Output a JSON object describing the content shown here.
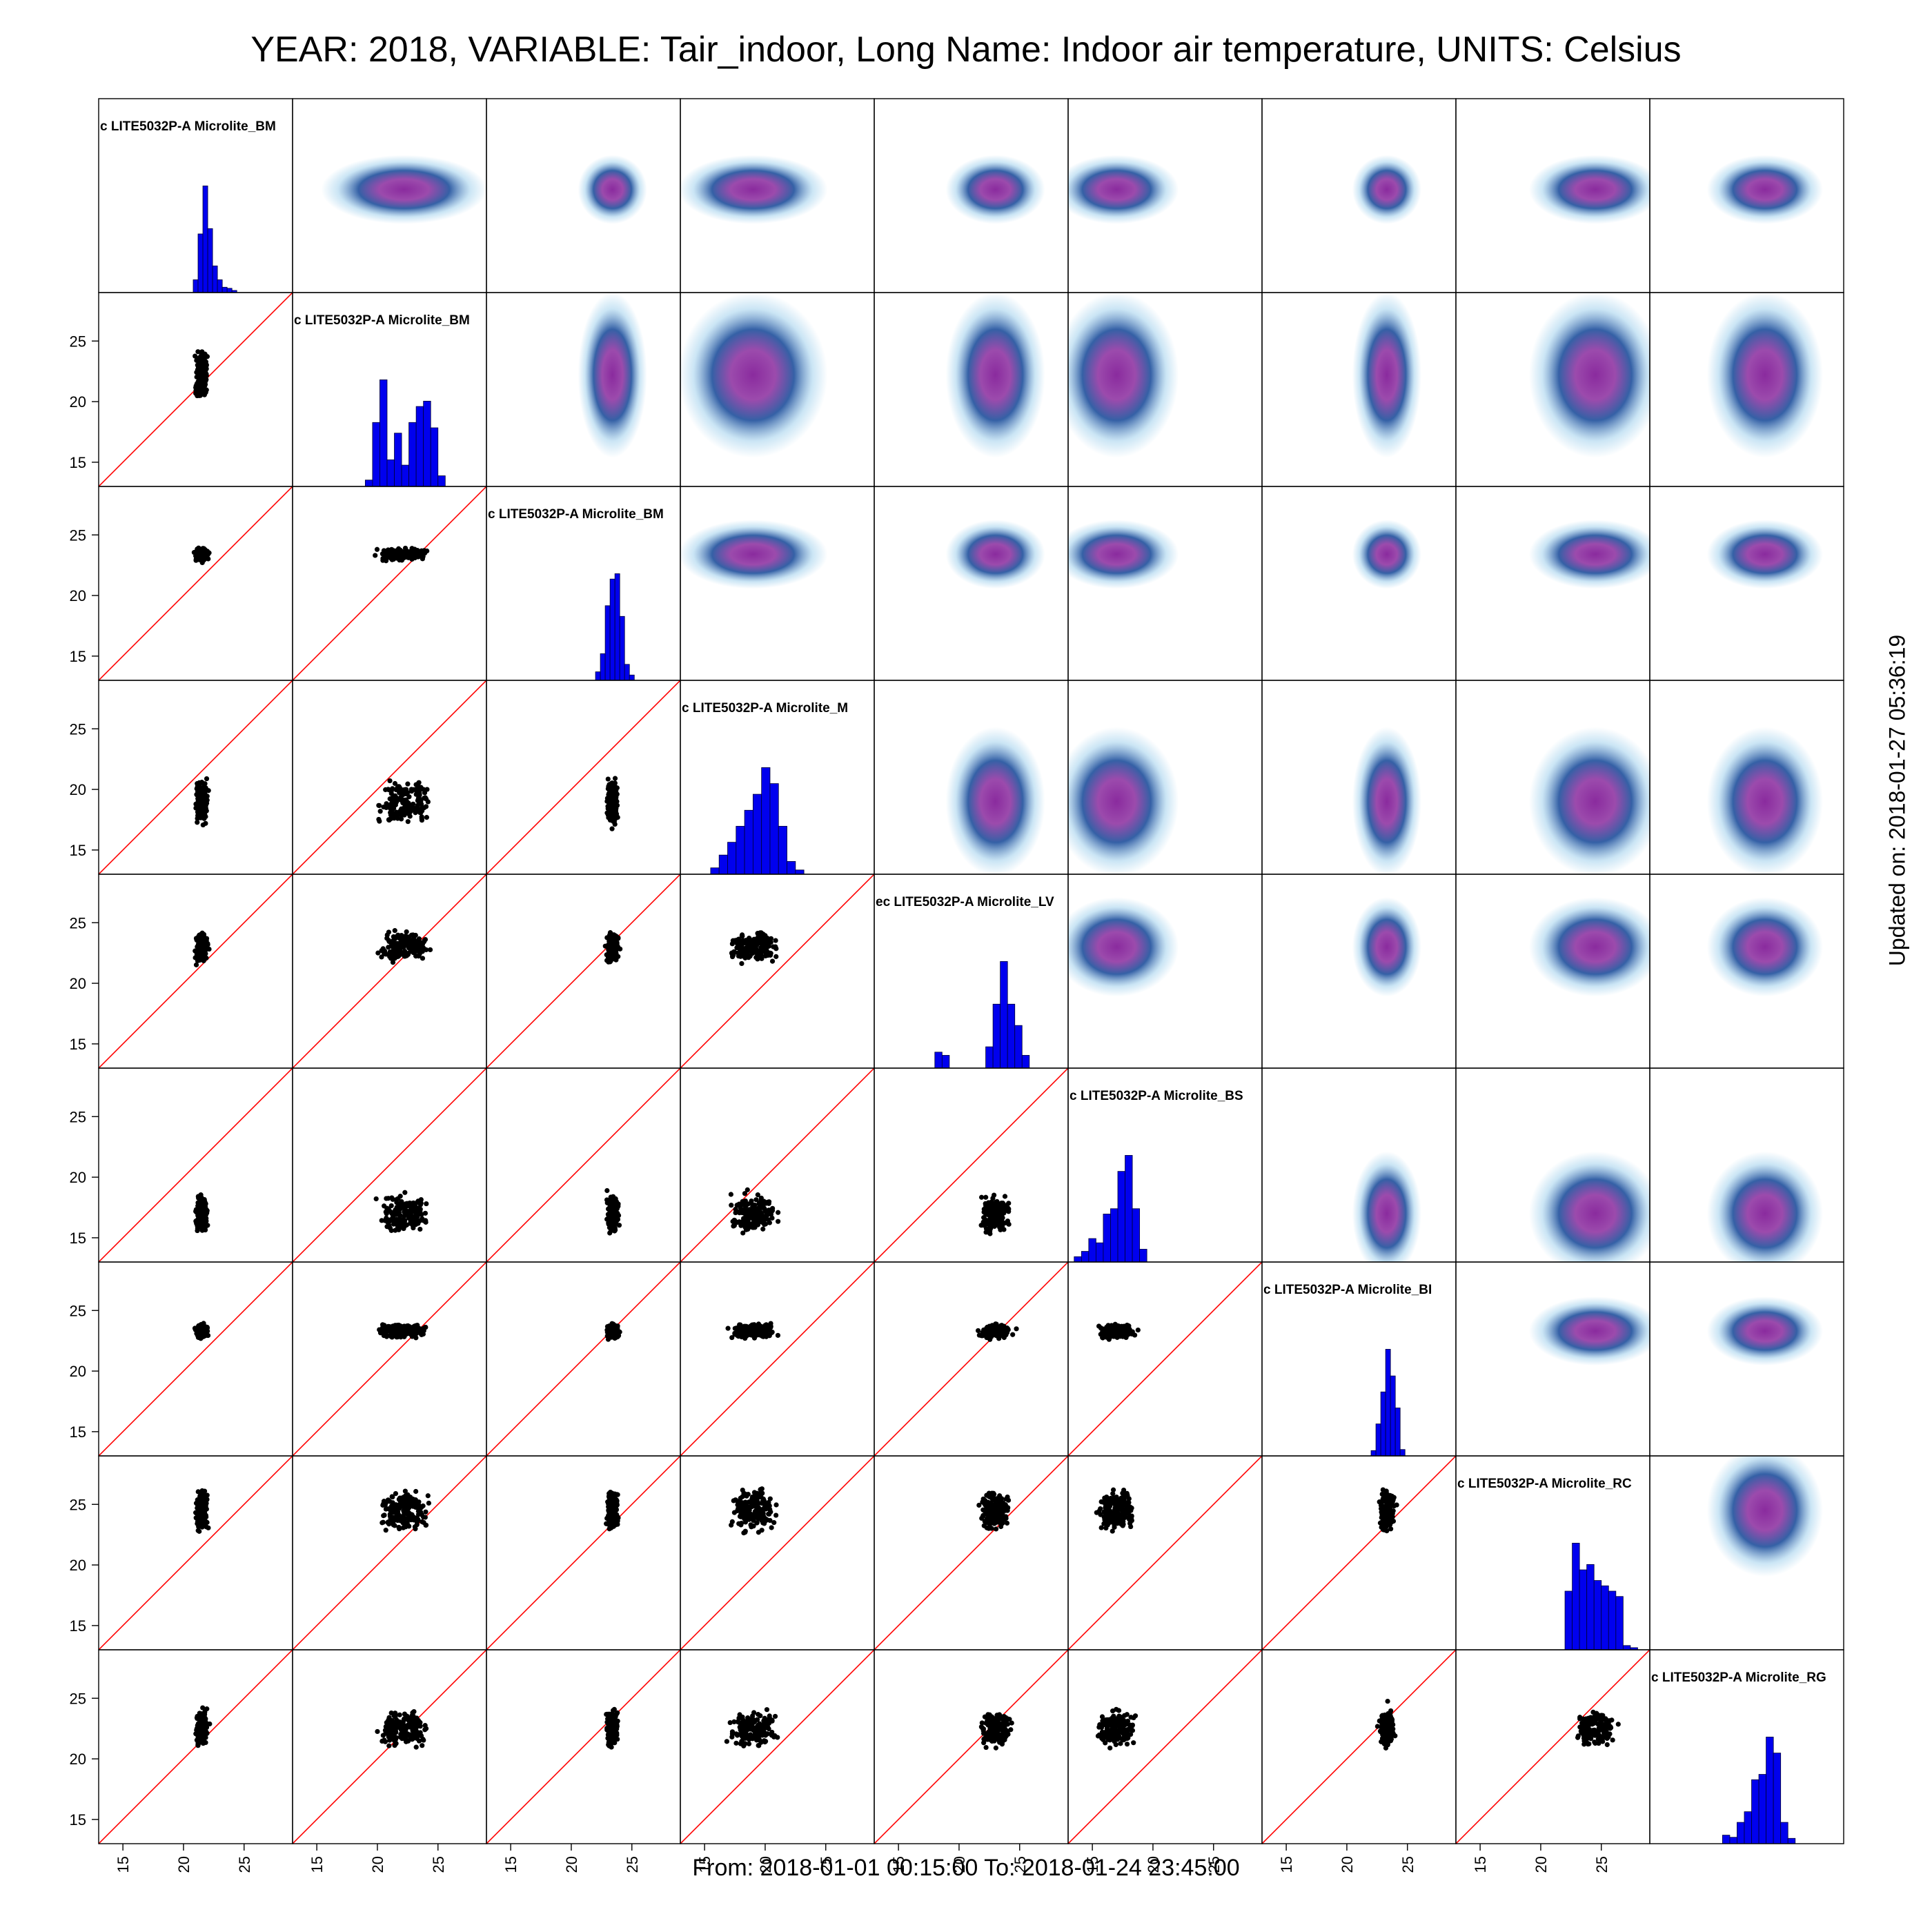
{
  "title": "YEAR: 2018, VARIABLE: Tair_indoor, Long Name: Indoor air temperature, UNITS: Celsius",
  "footer": "From: 2018-01-01 00:15:00 To: 2018-01-24 23:45:00",
  "updated": "Updated on: 2018-01-27 05:36:19",
  "colors": {
    "histogram_fill": "#0000ee",
    "scatter_points": "#000000",
    "identity_line": "#ff0000",
    "density_low": "#a8d4ee",
    "density_mid": "#1e4f9c",
    "density_high": "#8a2b9e",
    "panel_border": "#000000"
  },
  "chart_data": {
    "type": "scatter",
    "layout": "scatterplot-matrix",
    "lower_panels": "scatter",
    "upper_panels": "density",
    "diagonal_panels": "histogram",
    "identity_line": true,
    "axis_range": [
      13,
      29
    ],
    "tick_labels": [
      "15",
      "20",
      "25"
    ],
    "tick_values": [
      15,
      20,
      25
    ],
    "variables": [
      {
        "label": "c LITE5032P-A Microlite_BM",
        "center": [
          21.5,
          21.5
        ],
        "spread": 0.6,
        "hist": {
          "bins": [
            20.8,
            21.2,
            21.6,
            22.0,
            22.4,
            22.8,
            23.2,
            23.6,
            24.0
          ],
          "counts": [
            0.12,
            0.55,
            1.0,
            0.6,
            0.25,
            0.12,
            0.05,
            0.04,
            0.02
          ]
        },
        "scatter_spread": 0.5
      },
      {
        "label": "c LITE5032P-A Microlite_BM",
        "center": [
          22.2,
          22.2
        ],
        "spread": 2.0,
        "hist": {
          "bins": [
            19.0,
            19.6,
            20.2,
            20.8,
            21.4,
            22.0,
            22.6,
            23.2,
            23.8,
            24.4,
            25.0
          ],
          "counts": [
            0.06,
            0.6,
            1.0,
            0.25,
            0.5,
            0.2,
            0.6,
            0.75,
            0.8,
            0.55,
            0.1
          ]
        },
        "scatter_spread": 2.0
      },
      {
        "label": "c LITE5032P-A Microlite_BM",
        "center": [
          23.4,
          23.4
        ],
        "spread": 0.5,
        "hist": {
          "bins": [
            22.0,
            22.4,
            22.8,
            23.2,
            23.6,
            24.0,
            24.4,
            24.8
          ],
          "counts": [
            0.08,
            0.25,
            0.7,
            0.95,
            1.0,
            0.6,
            0.15,
            0.05
          ]
        },
        "scatter_spread": 0.5
      },
      {
        "label": "c LITE5032P-A Microlite_M",
        "center": [
          19.0,
          19.0
        ],
        "spread": 1.8,
        "hist": {
          "bins": [
            15.5,
            16.2,
            16.9,
            17.6,
            18.3,
            19.0,
            19.7,
            20.4,
            21.1,
            21.8,
            22.5
          ],
          "counts": [
            0.06,
            0.18,
            0.3,
            0.45,
            0.6,
            0.75,
            1.0,
            0.85,
            0.45,
            0.12,
            0.04
          ]
        },
        "scatter_spread": 1.8
      },
      {
        "label": "ec LITE5032P-A Microlite_LV",
        "center": [
          23.0,
          23.0
        ],
        "spread": 1.2,
        "hist": {
          "bins": [
            18.0,
            18.6,
            19.2,
            19.8,
            20.4,
            21.0,
            21.6,
            22.2,
            22.8,
            23.4,
            24.0,
            24.6,
            25.2
          ],
          "counts": [
            0.15,
            0.12,
            0,
            0,
            0,
            0,
            0.0,
            0.2,
            0.6,
            1.0,
            0.6,
            0.4,
            0.12
          ]
        },
        "scatter_spread": 1.2
      },
      {
        "label": "c LITE5032P-A Microlite_BS",
        "center": [
          17.0,
          17.0
        ],
        "spread": 1.5,
        "hist": {
          "bins": [
            13.5,
            14.1,
            14.7,
            15.3,
            15.9,
            16.5,
            17.1,
            17.7,
            18.3,
            18.9
          ],
          "counts": [
            0.05,
            0.1,
            0.22,
            0.18,
            0.45,
            0.5,
            0.85,
            1.0,
            0.5,
            0.12
          ]
        },
        "scatter_spread": 1.5
      },
      {
        "label": "c LITE5032P-A Microlite_BI",
        "center": [
          23.3,
          23.3
        ],
        "spread": 0.6,
        "hist": {
          "bins": [
            22.0,
            22.4,
            22.8,
            23.2,
            23.6,
            24.0,
            24.4
          ],
          "counts": [
            0.05,
            0.3,
            0.6,
            1.0,
            0.75,
            0.45,
            0.06
          ]
        },
        "scatter_spread": 0.6
      },
      {
        "label": "c LITE5032P-A Microlite_RC",
        "center": [
          24.5,
          24.5
        ],
        "spread": 1.6,
        "hist": {
          "bins": [
            22.0,
            22.6,
            23.2,
            23.8,
            24.4,
            25.0,
            25.6,
            26.2,
            26.8,
            27.4
          ],
          "counts": [
            0.55,
            1.0,
            0.75,
            0.8,
            0.65,
            0.6,
            0.55,
            0.5,
            0.04,
            0.02
          ]
        },
        "scatter_spread": 1.6
      },
      {
        "label": "c LITE5032P-A Microlite_RG",
        "center": [
          22.5,
          22.5
        ],
        "spread": 1.4,
        "hist": {
          "bins": [
            19.0,
            19.6,
            20.2,
            20.8,
            21.4,
            22.0,
            22.6,
            23.2,
            23.8,
            24.4
          ],
          "counts": [
            0.08,
            0.06,
            0.2,
            0.3,
            0.6,
            0.65,
            1.0,
            0.85,
            0.2,
            0.05
          ]
        },
        "scatter_spread": 1.4
      }
    ]
  }
}
